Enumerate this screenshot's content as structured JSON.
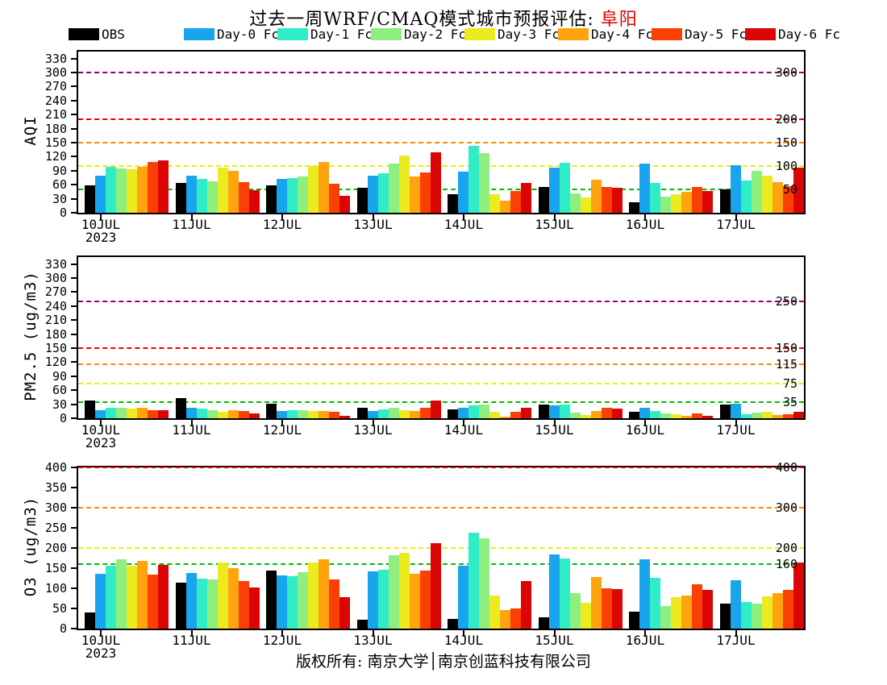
{
  "title": {
    "text": "过去一周WRF/CMAQ模式城市预报评估: ",
    "city": "阜阳",
    "city_color": "#e00000"
  },
  "legend": {
    "items": [
      {
        "label": "OBS",
        "color": "#000000"
      },
      {
        "label": "Day-0 Fc",
        "color": "#19a5ee"
      },
      {
        "label": "Day-1 Fc",
        "color": "#2fedc7"
      },
      {
        "label": "Day-2 Fc",
        "color": "#8fee80"
      },
      {
        "label": "Day-3 Fc",
        "color": "#ebeb1f"
      },
      {
        "label": "Day-4 Fc",
        "color": "#ffa40e"
      },
      {
        "label": "Day-5 Fc",
        "color": "#fb4006"
      },
      {
        "label": "Day-6 Fc",
        "color": "#dc0505"
      }
    ]
  },
  "x_axis": {
    "categories": [
      "10JUL",
      "11JUL",
      "12JUL",
      "13JUL",
      "14JUL",
      "15JUL",
      "16JUL",
      "17JUL"
    ],
    "year_label": "2023"
  },
  "footer": {
    "text": "版权所有: 南京大学│南京创蓝科技有限公司"
  },
  "chart_data": [
    {
      "type": "bar",
      "name": "AQI",
      "ylabel": "AQI",
      "ylim": [
        0,
        345
      ],
      "yticks": [
        0,
        30,
        60,
        90,
        120,
        150,
        180,
        210,
        240,
        270,
        300,
        330
      ],
      "grid": false,
      "legend_position": "top",
      "ref_lines": [
        {
          "value": 50,
          "color": "#00bb00",
          "label": "50"
        },
        {
          "value": 100,
          "color": "#eded00",
          "label": "100"
        },
        {
          "value": 150,
          "color": "#ff8a00",
          "label": "150"
        },
        {
          "value": 200,
          "color": "#f00000",
          "label": "200"
        },
        {
          "value": 300,
          "color": "#990066",
          "label": "300"
        }
      ],
      "categories": [
        "10JUL",
        "11JUL",
        "12JUL",
        "13JUL",
        "14JUL",
        "15JUL",
        "16JUL",
        "17JUL"
      ],
      "series": [
        {
          "name": "OBS",
          "values": [
            58,
            63,
            58,
            53,
            39,
            55,
            22,
            50
          ]
        },
        {
          "name": "Day-0 Fc",
          "values": [
            80,
            79,
            72,
            80,
            88,
            97,
            106,
            102
          ]
        },
        {
          "name": "Day-1 Fc",
          "values": [
            98,
            72,
            75,
            85,
            143,
            107,
            64,
            69
          ]
        },
        {
          "name": "Day-2 Fc",
          "values": [
            95,
            68,
            78,
            106,
            127,
            42,
            35,
            89
          ]
        },
        {
          "name": "Day-3 Fc",
          "values": [
            94,
            96,
            100,
            122,
            40,
            33,
            39,
            80
          ]
        },
        {
          "name": "Day-4 Fc",
          "values": [
            98,
            89,
            108,
            78,
            26,
            71,
            45,
            66
          ]
        },
        {
          "name": "Day-5 Fc",
          "values": [
            108,
            66,
            62,
            86,
            46,
            56,
            55,
            57
          ]
        },
        {
          "name": "Day-6 Fc",
          "values": [
            112,
            48,
            36,
            130,
            63,
            53,
            47,
            96
          ]
        }
      ]
    },
    {
      "type": "bar",
      "name": "PM2.5",
      "ylabel": "PM2.5 (ug/m3)",
      "ylim": [
        0,
        345
      ],
      "yticks": [
        0,
        30,
        60,
        90,
        120,
        150,
        180,
        210,
        240,
        270,
        300,
        330
      ],
      "grid": false,
      "legend_position": "top",
      "ref_lines": [
        {
          "value": 35,
          "color": "#00bb00",
          "label": "35"
        },
        {
          "value": 75,
          "color": "#eded00",
          "label": "75"
        },
        {
          "value": 115,
          "color": "#ff8a00",
          "label": "115"
        },
        {
          "value": 150,
          "color": "#f00000",
          "label": "150"
        },
        {
          "value": 250,
          "color": "#990066",
          "label": "250"
        }
      ],
      "categories": [
        "10JUL",
        "11JUL",
        "12JUL",
        "13JUL",
        "14JUL",
        "15JUL",
        "16JUL",
        "17JUL"
      ],
      "series": [
        {
          "name": "OBS",
          "values": [
            38,
            43,
            31,
            23,
            19,
            30,
            13,
            29
          ]
        },
        {
          "name": "Day-0 Fc",
          "values": [
            17,
            22,
            16,
            15,
            22,
            27,
            23,
            31
          ]
        },
        {
          "name": "Day-1 Fc",
          "values": [
            23,
            20,
            17,
            19,
            27,
            29,
            15,
            8
          ]
        },
        {
          "name": "Day-2 Fc",
          "values": [
            23,
            18,
            17,
            23,
            29,
            12,
            10,
            12
          ]
        },
        {
          "name": "Day-3 Fc",
          "values": [
            20,
            14,
            16,
            17,
            14,
            7,
            8,
            14
          ]
        },
        {
          "name": "Day-4 Fc",
          "values": [
            23,
            17,
            15,
            16,
            4,
            16,
            6,
            7
          ]
        },
        {
          "name": "Day-5 Fc",
          "values": [
            18,
            15,
            13,
            22,
            14,
            22,
            10,
            9
          ]
        },
        {
          "name": "Day-6 Fc",
          "values": [
            17,
            10,
            6,
            38,
            22,
            20,
            5,
            14
          ]
        }
      ]
    },
    {
      "type": "bar",
      "name": "O3",
      "ylabel": "O3 (ug/m3)",
      "ylim": [
        0,
        400
      ],
      "yticks": [
        0,
        50,
        100,
        150,
        200,
        250,
        300,
        350,
        400
      ],
      "grid": false,
      "legend_position": "top",
      "ref_lines": [
        {
          "value": 160,
          "color": "#00bb00",
          "label": "160"
        },
        {
          "value": 200,
          "color": "#eded00",
          "label": "200"
        },
        {
          "value": 300,
          "color": "#ff8a00",
          "label": "300"
        },
        {
          "value": 400,
          "color": "#f00000",
          "label": "400"
        }
      ],
      "categories": [
        "10JUL",
        "11JUL",
        "12JUL",
        "13JUL",
        "14JUL",
        "15JUL",
        "16JUL",
        "17JUL"
      ],
      "series": [
        {
          "name": "OBS",
          "values": [
            40,
            115,
            145,
            22,
            25,
            28,
            42,
            63
          ]
        },
        {
          "name": "Day-0 Fc",
          "values": [
            137,
            138,
            133,
            142,
            157,
            184,
            172,
            120
          ]
        },
        {
          "name": "Day-1 Fc",
          "values": [
            157,
            125,
            130,
            147,
            238,
            174,
            127,
            66
          ]
        },
        {
          "name": "Day-2 Fc",
          "values": [
            173,
            123,
            140,
            183,
            224,
            89,
            57,
            62
          ]
        },
        {
          "name": "Day-3 Fc",
          "values": [
            157,
            165,
            165,
            188,
            83,
            64,
            79,
            80
          ]
        },
        {
          "name": "Day-4 Fc",
          "values": [
            168,
            151,
            172,
            137,
            47,
            129,
            82,
            88
          ]
        },
        {
          "name": "Day-5 Fc",
          "values": [
            135,
            119,
            122,
            144,
            50,
            101,
            110,
            96
          ]
        },
        {
          "name": "Day-6 Fc",
          "values": [
            159,
            103,
            79,
            212,
            118,
            98,
            97,
            164
          ]
        }
      ]
    }
  ]
}
